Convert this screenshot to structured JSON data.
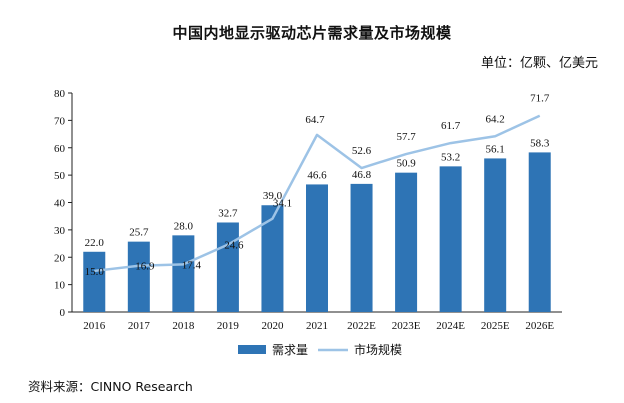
{
  "header": {
    "title": "中国内地显示驱动芯片需求量及市场规模",
    "unit": "单位：亿颗、亿美元"
  },
  "footer": {
    "source": "资料来源：CINNO Research"
  },
  "colors": {
    "bar": "#2e74b5",
    "line": "#9dc3e6"
  },
  "chart_data": {
    "type": "bar",
    "title": "中国内地显示驱动芯片需求量及市场规模",
    "categories": [
      "2016",
      "2017",
      "2018",
      "2019",
      "2020",
      "2021",
      "2022E",
      "2023E",
      "2024E",
      "2025E",
      "2026E"
    ],
    "series": [
      {
        "name": "需求量",
        "type": "bar",
        "values": [
          22.0,
          25.7,
          28.0,
          32.7,
          39.0,
          46.6,
          46.8,
          50.9,
          53.2,
          56.1,
          58.3
        ]
      },
      {
        "name": "市场规模",
        "type": "line",
        "values": [
          15.0,
          16.9,
          17.4,
          24.6,
          34.1,
          64.7,
          52.6,
          57.7,
          61.7,
          64.2,
          71.7
        ]
      }
    ],
    "ylim": [
      0,
      80
    ],
    "yticks": [
      0,
      10,
      20,
      30,
      40,
      50,
      60,
      70,
      80
    ],
    "legend": "bottom-center"
  }
}
